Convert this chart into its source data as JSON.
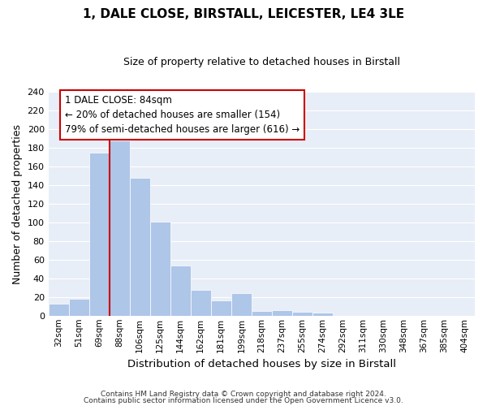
{
  "title": "1, DALE CLOSE, BIRSTALL, LEICESTER, LE4 3LE",
  "subtitle": "Size of property relative to detached houses in Birstall",
  "xlabel": "Distribution of detached houses by size in Birstall",
  "ylabel": "Number of detached properties",
  "bar_labels": [
    "32sqm",
    "51sqm",
    "69sqm",
    "88sqm",
    "106sqm",
    "125sqm",
    "144sqm",
    "162sqm",
    "181sqm",
    "199sqm",
    "218sqm",
    "237sqm",
    "255sqm",
    "274sqm",
    "292sqm",
    "311sqm",
    "330sqm",
    "348sqm",
    "367sqm",
    "385sqm",
    "404sqm"
  ],
  "bar_values": [
    13,
    18,
    175,
    188,
    148,
    101,
    54,
    28,
    16,
    24,
    5,
    6,
    4,
    3,
    0,
    0,
    0,
    0,
    0,
    0,
    0
  ],
  "bar_color": "#aec6e8",
  "vline_color": "#cc0000",
  "vline_xindex": 3,
  "annotation_title": "1 DALE CLOSE: 84sqm",
  "annotation_line1": "← 20% of detached houses are smaller (154)",
  "annotation_line2": "79% of semi-detached houses are larger (616) →",
  "ylim": [
    0,
    240
  ],
  "yticks": [
    0,
    20,
    40,
    60,
    80,
    100,
    120,
    140,
    160,
    180,
    200,
    220,
    240
  ],
  "bg_color": "#e8eef7",
  "footer1": "Contains HM Land Registry data © Crown copyright and database right 2024.",
  "footer2": "Contains public sector information licensed under the Open Government Licence v3.0."
}
